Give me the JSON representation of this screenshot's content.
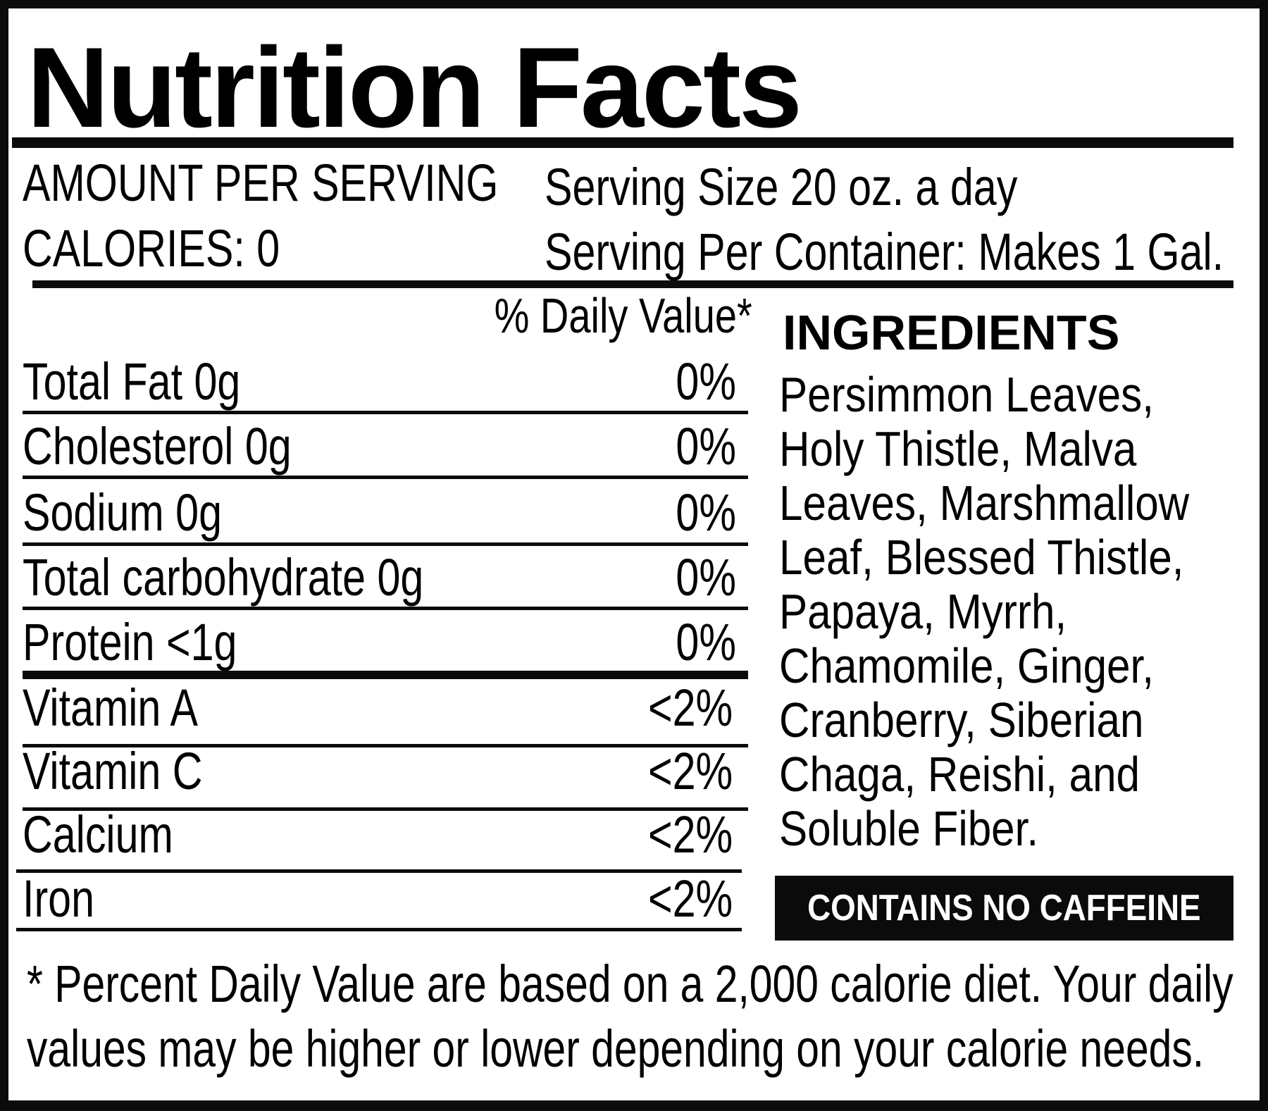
{
  "title": "Nutrition Facts",
  "header": {
    "amount_per_serving": "AMOUNT PER SERVING",
    "calories": "CALORIES: 0",
    "serving_size": "Serving Size 20 oz. a day",
    "servings_per_container": "Serving Per Container: Makes 1 Gal."
  },
  "daily_value_header": "% Daily Value*",
  "nutrients": [
    {
      "label": "Total Fat 0g",
      "value": "0%"
    },
    {
      "label": "Cholesterol 0g",
      "value": "0%"
    },
    {
      "label": "Sodium 0g",
      "value": "0%"
    },
    {
      "label": "Total carbohydrate 0g",
      "value": "0%"
    },
    {
      "label": "Protein <1g",
      "value": "0%"
    },
    {
      "label": "Vitamin A",
      "value": "<2%"
    },
    {
      "label": "Vitamin C",
      "value": "<2%"
    },
    {
      "label": "Calcium",
      "value": "<2%"
    },
    {
      "label": "Iron",
      "value": "<2%"
    }
  ],
  "ingredients": {
    "title": "INGREDIENTS",
    "lines": [
      "Persimmon Leaves,",
      "Holy Thistle, Malva",
      "Leaves, Marshmallow",
      "Leaf, Blessed Thistle,",
      "Papaya, Myrrh,",
      "Chamomile, Ginger,",
      "Cranberry, Siberian",
      "Chaga, Reishi, and",
      "Soluble Fiber."
    ]
  },
  "badge": "CONTAINS NO CAFFEINE",
  "footnote": {
    "line1": "* Percent Daily Value are based on a 2,000 calorie diet. Your daily",
    "line2": "values may be higher or lower depending on your calorie needs."
  },
  "colors": {
    "ink": "#0b0b0b",
    "background": "#ffffff"
  }
}
